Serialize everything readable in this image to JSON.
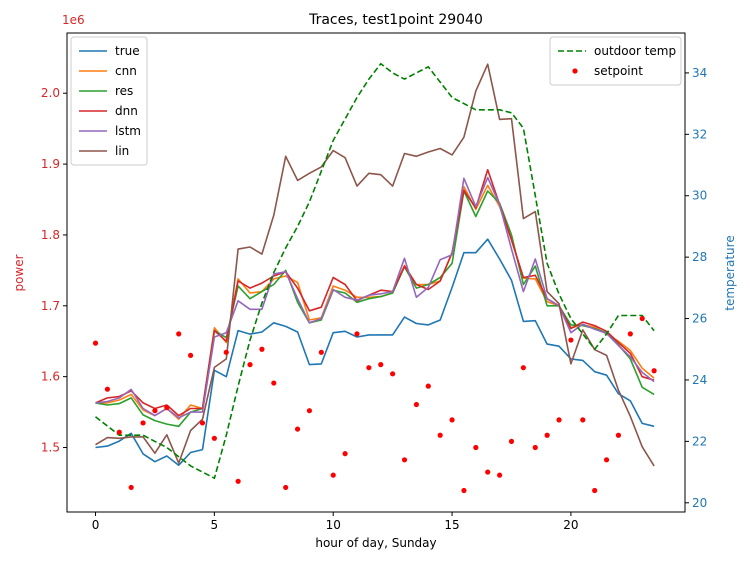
{
  "chart_data": {
    "type": "line",
    "title": "Traces, test1point 29040",
    "xlabel": "hour of day, Sunday",
    "ylabel_left": "power",
    "ylabel_right": "temperature",
    "left_offset_text": "1e6",
    "xlim": [
      -1.2,
      24.8
    ],
    "ylim_left": [
      1.409,
      2.085
    ],
    "ylim_right": [
      19.7,
      35.3
    ],
    "xticks": [
      0,
      5,
      10,
      15,
      20
    ],
    "yticks_left": [
      {
        "value": 1.5,
        "label": "1.5"
      },
      {
        "value": 1.6,
        "label": "1.6"
      },
      {
        "value": 1.7,
        "label": "1.7"
      },
      {
        "value": 1.8,
        "label": "1.8"
      },
      {
        "value": 1.9,
        "label": "1.9"
      },
      {
        "value": 2.0,
        "label": "2.0"
      }
    ],
    "yticks_right": [
      20,
      22,
      24,
      26,
      28,
      30,
      32,
      34
    ],
    "colors": {
      "left_axis": "#d62728",
      "right_axis": "#1f77b4"
    },
    "x": [
      0,
      0.5,
      1,
      1.5,
      2,
      2.5,
      3,
      3.5,
      4,
      4.5,
      5,
      5.5,
      6,
      6.5,
      7,
      7.5,
      8,
      8.5,
      9,
      9.5,
      10,
      10.5,
      11,
      11.5,
      12,
      12.5,
      13,
      13.5,
      14,
      14.5,
      15,
      15.5,
      16,
      16.5,
      17,
      17.5,
      18,
      18.5,
      19,
      19.5,
      20,
      20.5,
      21,
      21.5,
      22,
      22.5,
      23,
      23.5
    ],
    "series": [
      {
        "name": "true",
        "axis": "left",
        "color": "#1f77b4",
        "style": "solid",
        "values": [
          1.5,
          1.502,
          1.509,
          1.52,
          1.491,
          1.48,
          1.488,
          1.475,
          1.493,
          1.497,
          1.609,
          1.6,
          1.665,
          1.66,
          1.663,
          1.676,
          1.671,
          1.663,
          1.617,
          1.618,
          1.662,
          1.664,
          1.656,
          1.659,
          1.659,
          1.659,
          1.684,
          1.675,
          1.673,
          1.68,
          1.726,
          1.775,
          1.775,
          1.794,
          1.766,
          1.736,
          1.678,
          1.679,
          1.646,
          1.643,
          1.625,
          1.623,
          1.607,
          1.602,
          1.576,
          1.566,
          1.534,
          1.53
        ]
      },
      {
        "name": "cnn",
        "axis": "left",
        "color": "#ff7f0e",
        "style": "solid",
        "values": [
          1.563,
          1.563,
          1.567,
          1.575,
          1.553,
          1.545,
          1.555,
          1.54,
          1.56,
          1.555,
          1.669,
          1.648,
          1.738,
          1.718,
          1.72,
          1.738,
          1.742,
          1.733,
          1.68,
          1.683,
          1.728,
          1.722,
          1.712,
          1.712,
          1.713,
          1.718,
          1.757,
          1.73,
          1.73,
          1.735,
          1.775,
          1.868,
          1.836,
          1.87,
          1.84,
          1.793,
          1.739,
          1.738,
          1.706,
          1.7,
          1.669,
          1.673,
          1.67,
          1.66,
          1.65,
          1.637,
          1.612,
          1.598
        ]
      },
      {
        "name": "res",
        "axis": "left",
        "color": "#2ca02c",
        "style": "solid",
        "values": [
          1.563,
          1.56,
          1.562,
          1.57,
          1.546,
          1.538,
          1.533,
          1.53,
          1.55,
          1.555,
          1.665,
          1.655,
          1.728,
          1.71,
          1.72,
          1.73,
          1.75,
          1.705,
          1.676,
          1.68,
          1.722,
          1.718,
          1.705,
          1.71,
          1.713,
          1.718,
          1.755,
          1.725,
          1.73,
          1.74,
          1.76,
          1.862,
          1.826,
          1.862,
          1.845,
          1.8,
          1.73,
          1.756,
          1.7,
          1.7,
          1.673,
          1.672,
          1.668,
          1.662,
          1.645,
          1.625,
          1.585,
          1.575
        ]
      },
      {
        "name": "dnn",
        "axis": "left",
        "color": "#d62728",
        "style": "solid",
        "values": [
          1.563,
          1.57,
          1.572,
          1.58,
          1.563,
          1.555,
          1.56,
          1.545,
          1.555,
          1.555,
          1.665,
          1.65,
          1.735,
          1.725,
          1.732,
          1.742,
          1.748,
          1.725,
          1.693,
          1.698,
          1.74,
          1.73,
          1.707,
          1.715,
          1.722,
          1.72,
          1.756,
          1.73,
          1.723,
          1.735,
          1.775,
          1.863,
          1.838,
          1.892,
          1.843,
          1.793,
          1.74,
          1.743,
          1.71,
          1.7,
          1.668,
          1.677,
          1.672,
          1.664,
          1.648,
          1.633,
          1.6,
          1.595
        ]
      },
      {
        "name": "lstm",
        "axis": "left",
        "color": "#9467bd",
        "style": "solid",
        "values": [
          1.563,
          1.565,
          1.57,
          1.582,
          1.555,
          1.545,
          1.555,
          1.542,
          1.55,
          1.55,
          1.656,
          1.662,
          1.707,
          1.695,
          1.695,
          1.745,
          1.748,
          1.71,
          1.676,
          1.682,
          1.723,
          1.712,
          1.708,
          1.715,
          1.717,
          1.72,
          1.767,
          1.712,
          1.726,
          1.765,
          1.772,
          1.88,
          1.84,
          1.881,
          1.843,
          1.78,
          1.72,
          1.766,
          1.71,
          1.7,
          1.662,
          1.674,
          1.667,
          1.661,
          1.644,
          1.628,
          1.606,
          1.593
        ]
      },
      {
        "name": "lin",
        "axis": "left",
        "color": "#8c564b",
        "style": "solid",
        "values": [
          1.504,
          1.514,
          1.513,
          1.515,
          1.515,
          1.492,
          1.518,
          1.478,
          1.524,
          1.54,
          1.613,
          1.625,
          1.78,
          1.783,
          1.773,
          1.828,
          1.911,
          1.877,
          1.887,
          1.896,
          1.919,
          1.909,
          1.869,
          1.887,
          1.885,
          1.869,
          1.915,
          1.911,
          1.917,
          1.922,
          1.913,
          1.938,
          2.003,
          2.041,
          1.963,
          1.964,
          1.823,
          1.833,
          1.72,
          1.703,
          1.618,
          1.666,
          1.638,
          1.63,
          1.581,
          1.544,
          1.501,
          1.474
        ]
      },
      {
        "name": "outdoor temp",
        "axis": "right",
        "color": "#008000",
        "style": "dashed",
        "values": [
          22.8,
          22.5,
          22.2,
          22.2,
          22.2,
          22.0,
          21.8,
          21.5,
          21.2,
          21.0,
          20.8,
          22.2,
          23.8,
          25.3,
          26.5,
          27.5,
          28.3,
          29.0,
          29.8,
          30.8,
          31.8,
          32.5,
          33.2,
          33.8,
          34.3,
          34.0,
          33.8,
          34.0,
          34.2,
          33.7,
          33.2,
          33.0,
          32.8,
          32.8,
          32.8,
          32.7,
          32.2,
          30.0,
          27.8,
          26.8,
          26.0,
          25.5,
          25.0,
          25.5,
          26.1,
          26.1,
          26.1,
          25.6
        ]
      },
      {
        "name": "setpoint",
        "axis": "right",
        "color": "#ff0000",
        "style": "scatter",
        "points": [
          [
            0,
            25.2
          ],
          [
            0.5,
            23.7
          ],
          [
            1,
            22.3
          ],
          [
            1.5,
            20.5
          ],
          [
            2,
            22.6
          ],
          [
            2.5,
            23.0
          ],
          [
            3,
            23.1
          ],
          [
            3.5,
            25.5
          ],
          [
            4,
            24.8
          ],
          [
            4.5,
            22.6
          ],
          [
            5,
            22.1
          ],
          [
            5.5,
            24.9
          ],
          [
            6,
            20.7
          ],
          [
            6.5,
            24.5
          ],
          [
            7,
            25.0
          ],
          [
            7.5,
            23.9
          ],
          [
            8,
            20.5
          ],
          [
            8.5,
            22.4
          ],
          [
            9,
            23.0
          ],
          [
            9.5,
            24.9
          ],
          [
            10,
            20.9
          ],
          [
            10.5,
            21.6
          ],
          [
            11,
            25.5
          ],
          [
            11.5,
            24.4
          ],
          [
            12,
            24.5
          ],
          [
            12.5,
            24.2
          ],
          [
            13,
            21.4
          ],
          [
            13.5,
            23.2
          ],
          [
            14,
            23.8
          ],
          [
            14.5,
            22.2
          ],
          [
            15,
            22.7
          ],
          [
            15.5,
            20.4
          ],
          [
            16,
            21.8
          ],
          [
            16.5,
            21.0
          ],
          [
            17,
            20.9
          ],
          [
            17.5,
            22.0
          ],
          [
            18,
            24.4
          ],
          [
            18.5,
            21.8
          ],
          [
            19,
            22.2
          ],
          [
            19.5,
            22.7
          ],
          [
            20,
            25.3
          ],
          [
            20.5,
            22.7
          ],
          [
            21,
            20.4
          ],
          [
            21.5,
            21.4
          ],
          [
            22,
            22.2
          ],
          [
            22.5,
            25.5
          ],
          [
            23,
            26.0
          ],
          [
            23.5,
            24.3
          ]
        ]
      }
    ],
    "legend_left": {
      "placement": "upper-left",
      "entries": [
        "true",
        "cnn",
        "res",
        "dnn",
        "lstm",
        "lin"
      ]
    },
    "legend_right": {
      "placement": "upper-right",
      "entries": [
        "outdoor temp",
        "setpoint"
      ]
    }
  }
}
